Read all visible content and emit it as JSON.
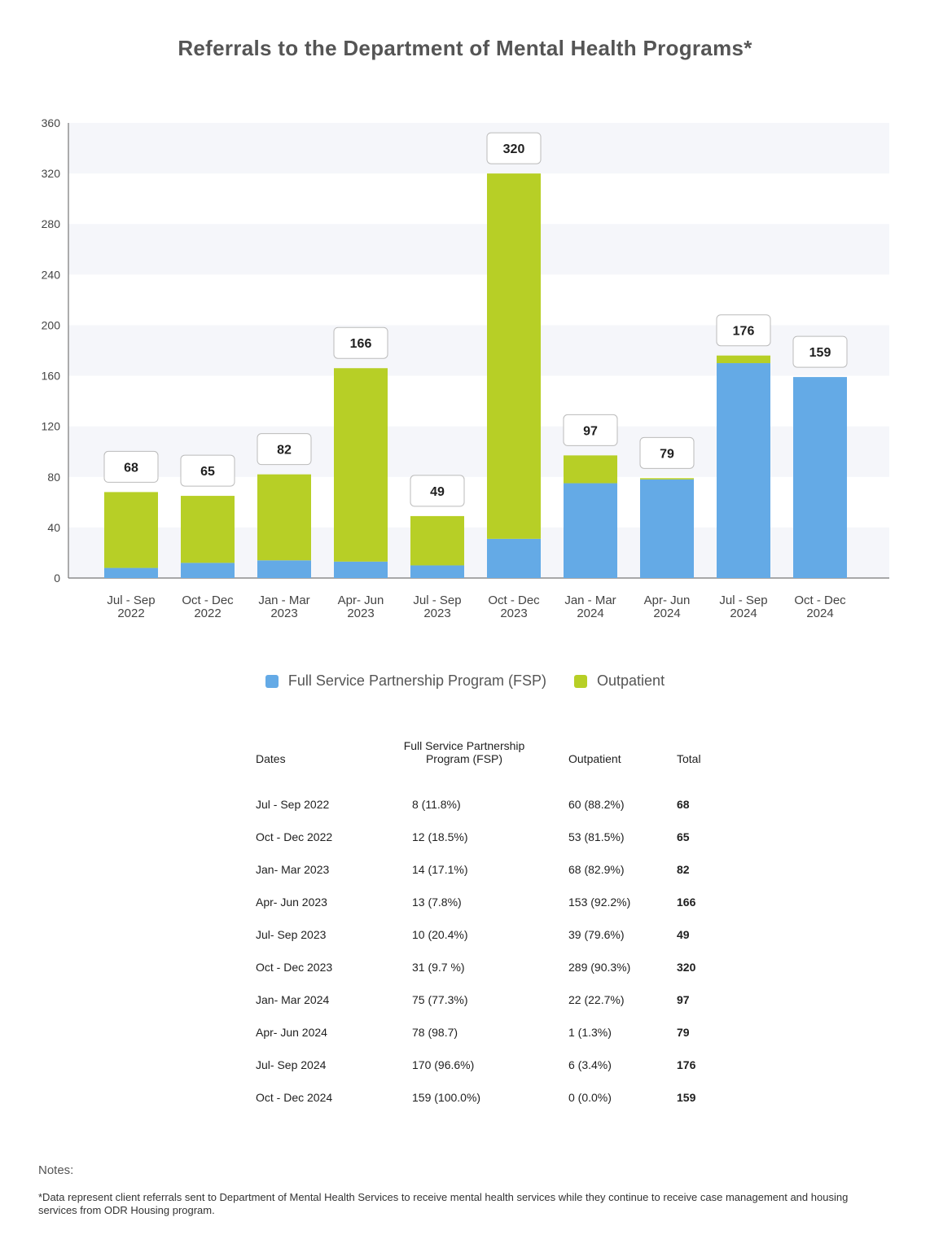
{
  "title": "Referrals to the Department of Mental Health Programs*",
  "colors": {
    "fsp": "#64aae6",
    "outpatient": "#b7cf26",
    "band": "#f5f6fa"
  },
  "chart_data": {
    "type": "bar",
    "stacked": true,
    "categories": [
      [
        "Jul - Sep",
        "2022"
      ],
      [
        "Oct - Dec",
        "2022"
      ],
      [
        "Jan - Mar",
        "2023"
      ],
      [
        "Apr- Jun",
        "2023"
      ],
      [
        "Jul - Sep",
        "2023"
      ],
      [
        "Oct - Dec",
        "2023"
      ],
      [
        "Jan - Mar",
        "2024"
      ],
      [
        "Apr- Jun",
        "2024"
      ],
      [
        "Jul - Sep",
        "2024"
      ],
      [
        "Oct - Dec",
        "2024"
      ]
    ],
    "series": [
      {
        "name": "Full Service Partnership Program (FSP)",
        "values": [
          8,
          12,
          14,
          13,
          10,
          31,
          75,
          78,
          170,
          159
        ]
      },
      {
        "name": "Outpatient",
        "values": [
          60,
          53,
          68,
          153,
          39,
          289,
          22,
          1,
          6,
          0
        ]
      }
    ],
    "totals": [
      68,
      65,
      82,
      166,
      49,
      320,
      97,
      79,
      176,
      159
    ],
    "yticks": [
      0,
      40,
      80,
      120,
      160,
      200,
      240,
      280,
      320,
      360
    ],
    "ylim": [
      0,
      360
    ],
    "legend": "bottom"
  },
  "legend": {
    "fsp_label": "Full Service Partnership Program (FSP)",
    "outpatient_label": "Outpatient"
  },
  "table": {
    "headers": {
      "dates": "Dates",
      "fsp_line1": "Full Service Partnership",
      "fsp_line2": "Program (FSP)",
      "outpatient": "Outpatient",
      "total": "Total"
    },
    "rows": [
      {
        "date": "Jul - Sep 2022",
        "fsp": "8 (11.8%)",
        "outpatient": "60 (88.2%)",
        "total": "68"
      },
      {
        "date": "Oct - Dec 2022",
        "fsp": "12 (18.5%)",
        "outpatient": "53 (81.5%)",
        "total": "65"
      },
      {
        "date": "Jan- Mar 2023",
        "fsp": "14 (17.1%)",
        "outpatient": "68 (82.9%)",
        "total": "82"
      },
      {
        "date": "Apr- Jun 2023",
        "fsp": "13 (7.8%)",
        "outpatient": "153 (92.2%)",
        "total": "166"
      },
      {
        "date": "Jul- Sep 2023",
        "fsp": "10 (20.4%)",
        "outpatient": "39 (79.6%)",
        "total": "49"
      },
      {
        "date": "Oct - Dec 2023",
        "fsp": "31 (9.7 %)",
        "outpatient": "289 (90.3%)",
        "total": "320"
      },
      {
        "date": "Jan- Mar 2024",
        "fsp": "75 (77.3%)",
        "outpatient": "22 (22.7%)",
        "total": "97"
      },
      {
        "date": "Apr- Jun 2024",
        "fsp": "78 (98.7)",
        "outpatient": "1 (1.3%)",
        "total": "79"
      },
      {
        "date": "Jul- Sep 2024",
        "fsp": "170 (96.6%)",
        "outpatient": "6 (3.4%)",
        "total": "176"
      },
      {
        "date": "Oct - Dec 2024",
        "fsp": "159 (100.0%)",
        "outpatient": "0 (0.0%)",
        "total": "159"
      }
    ]
  },
  "notes": {
    "heading": "Notes:",
    "text": "*Data represent client referrals sent to Department of Mental Health Services to receive mental health services while they continue to receive case management and housing services from ODR Housing program."
  }
}
